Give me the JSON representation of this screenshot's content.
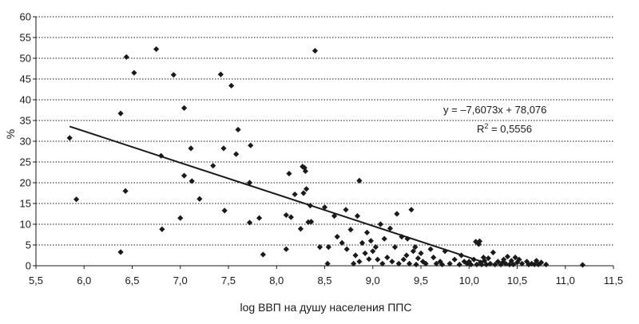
{
  "chart_data": {
    "type": "scatter",
    "title": "",
    "xlabel": "log ВВП на душу населения ППС",
    "ylabel": "%",
    "xlim": [
      5.5,
      11.5
    ],
    "ylim": [
      0,
      60
    ],
    "x_ticks": [
      "5,5",
      "6,0",
      "6,5",
      "7,0",
      "7,5",
      "8,0",
      "8,5",
      "9,0",
      "9,5",
      "10,0",
      "10,5",
      "11,0",
      "11,5"
    ],
    "y_ticks": [
      "0",
      "5",
      "10",
      "15",
      "20",
      "25",
      "30",
      "35",
      "40",
      "45",
      "50",
      "55",
      "60"
    ],
    "grid": "horizontal dotted",
    "marker": "diamond",
    "marker_color": "#1a1a1a",
    "trendline": {
      "equation": "y = –7,6073x + 78,076",
      "r2_prefix": "R",
      "r2_exp": "2",
      "r2_value": " = 0,5556",
      "slope": -7.6073,
      "intercept": 78.076,
      "x_range": [
        5.85,
        10.15
      ]
    },
    "points": [
      [
        5.85,
        30.8
      ],
      [
        5.92,
        16.0
      ],
      [
        6.38,
        3.3
      ],
      [
        6.38,
        36.7
      ],
      [
        6.43,
        18.0
      ],
      [
        6.44,
        50.3
      ],
      [
        6.52,
        46.5
      ],
      [
        6.75,
        52.2
      ],
      [
        6.8,
        26.5
      ],
      [
        6.81,
        8.8
      ],
      [
        6.93,
        46.0
      ],
      [
        7.0,
        11.5
      ],
      [
        7.04,
        38.0
      ],
      [
        7.04,
        21.7
      ],
      [
        7.11,
        28.3
      ],
      [
        7.12,
        20.4
      ],
      [
        7.2,
        16.1
      ],
      [
        7.34,
        24.1
      ],
      [
        7.42,
        46.1
      ],
      [
        7.45,
        28.3
      ],
      [
        7.46,
        13.3
      ],
      [
        7.53,
        43.4
      ],
      [
        7.58,
        26.9
      ],
      [
        7.6,
        32.8
      ],
      [
        7.72,
        20.0
      ],
      [
        7.72,
        10.4
      ],
      [
        7.73,
        29.0
      ],
      [
        7.82,
        11.5
      ],
      [
        7.86,
        2.7
      ],
      [
        8.1,
        12.2
      ],
      [
        8.1,
        4.0
      ],
      [
        8.13,
        22.2
      ],
      [
        8.15,
        11.7
      ],
      [
        8.19,
        17.2
      ],
      [
        8.25,
        8.9
      ],
      [
        8.27,
        23.9
      ],
      [
        8.28,
        17.5
      ],
      [
        8.29,
        23.6
      ],
      [
        8.3,
        22.8
      ],
      [
        8.31,
        18.5
      ],
      [
        8.33,
        10.5
      ],
      [
        8.35,
        14.5
      ],
      [
        8.36,
        10.6
      ],
      [
        8.4,
        51.8
      ],
      [
        8.45,
        4.5
      ],
      [
        8.5,
        14.1
      ],
      [
        8.53,
        0.5
      ],
      [
        8.54,
        4.5
      ],
      [
        8.6,
        12.0
      ],
      [
        8.63,
        7.0
      ],
      [
        8.68,
        5.5
      ],
      [
        8.72,
        13.5
      ],
      [
        8.73,
        4.0
      ],
      [
        8.77,
        8.7
      ],
      [
        8.8,
        0.5
      ],
      [
        8.82,
        2.5
      ],
      [
        8.84,
        12.0
      ],
      [
        8.86,
        20.5
      ],
      [
        8.86,
        1.0
      ],
      [
        8.89,
        5.5
      ],
      [
        8.92,
        3.0
      ],
      [
        8.94,
        8.0
      ],
      [
        8.96,
        1.6
      ],
      [
        8.98,
        6.0
      ],
      [
        9.0,
        3.5
      ],
      [
        9.03,
        4.5
      ],
      [
        9.05,
        1.5
      ],
      [
        9.08,
        10.0
      ],
      [
        9.1,
        0.5
      ],
      [
        9.12,
        6.5
      ],
      [
        9.15,
        2.0
      ],
      [
        9.18,
        9.0
      ],
      [
        9.2,
        1.0
      ],
      [
        9.23,
        4.5
      ],
      [
        9.25,
        12.5
      ],
      [
        9.27,
        0.5
      ],
      [
        9.3,
        7.0
      ],
      [
        9.32,
        1.5
      ],
      [
        9.35,
        2.5
      ],
      [
        9.36,
        6.5
      ],
      [
        9.38,
        0.5
      ],
      [
        9.4,
        13.5
      ],
      [
        9.42,
        3.5
      ],
      [
        9.44,
        4.5
      ],
      [
        9.45,
        0.3
      ],
      [
        9.47,
        1.8
      ],
      [
        9.5,
        3.0
      ],
      [
        9.52,
        1.0
      ],
      [
        9.55,
        0.5
      ],
      [
        9.6,
        4.0
      ],
      [
        9.63,
        2.0
      ],
      [
        9.66,
        0.5
      ],
      [
        9.7,
        1.0
      ],
      [
        9.72,
        0.3
      ],
      [
        9.75,
        3.5
      ],
      [
        9.8,
        0.5
      ],
      [
        9.85,
        1.5
      ],
      [
        9.9,
        0.3
      ],
      [
        9.92,
        2.5
      ],
      [
        9.95,
        1.0
      ],
      [
        9.98,
        0.5
      ],
      [
        10.0,
        1.0
      ],
      [
        10.02,
        0.3
      ],
      [
        10.05,
        1.5
      ],
      [
        10.07,
        5.8
      ],
      [
        10.08,
        0.3
      ],
      [
        10.1,
        5.2
      ],
      [
        10.11,
        5.9
      ],
      [
        10.12,
        0.8
      ],
      [
        10.13,
        0.3
      ],
      [
        10.15,
        2.0
      ],
      [
        10.16,
        1.2
      ],
      [
        10.18,
        0.3
      ],
      [
        10.2,
        1.8
      ],
      [
        10.22,
        0.5
      ],
      [
        10.25,
        3.2
      ],
      [
        10.27,
        0.3
      ],
      [
        10.3,
        1.0
      ],
      [
        10.33,
        0.3
      ],
      [
        10.35,
        0.8
      ],
      [
        10.36,
        1.5
      ],
      [
        10.38,
        0.5
      ],
      [
        10.4,
        2.2
      ],
      [
        10.42,
        0.3
      ],
      [
        10.44,
        1.2
      ],
      [
        10.46,
        0.3
      ],
      [
        10.48,
        2.0
      ],
      [
        10.5,
        0.8
      ],
      [
        10.52,
        1.5
      ],
      [
        10.55,
        0.5
      ],
      [
        10.6,
        1.0
      ],
      [
        10.62,
        0.3
      ],
      [
        10.65,
        0.5
      ],
      [
        10.68,
        0.3
      ],
      [
        10.7,
        1.2
      ],
      [
        10.72,
        0.3
      ],
      [
        10.75,
        0.8
      ],
      [
        10.8,
        0.3
      ],
      [
        11.18,
        0.2
      ]
    ]
  }
}
